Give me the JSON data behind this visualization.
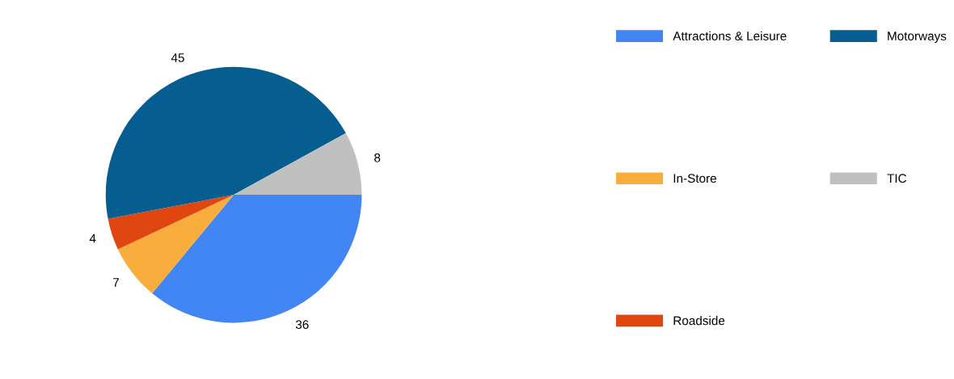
{
  "chart_data": {
    "type": "pie",
    "categories": [
      "Attractions & Leisure",
      "In-Store",
      "Roadside",
      "Motorways",
      "TIC"
    ],
    "values": [
      36,
      7,
      4,
      45,
      8
    ],
    "colors": [
      "#4285f4",
      "#f9ad3d",
      "#e0460f",
      "#065d8f",
      "#c0c0c0"
    ],
    "data_labels": true,
    "legend": "right"
  }
}
